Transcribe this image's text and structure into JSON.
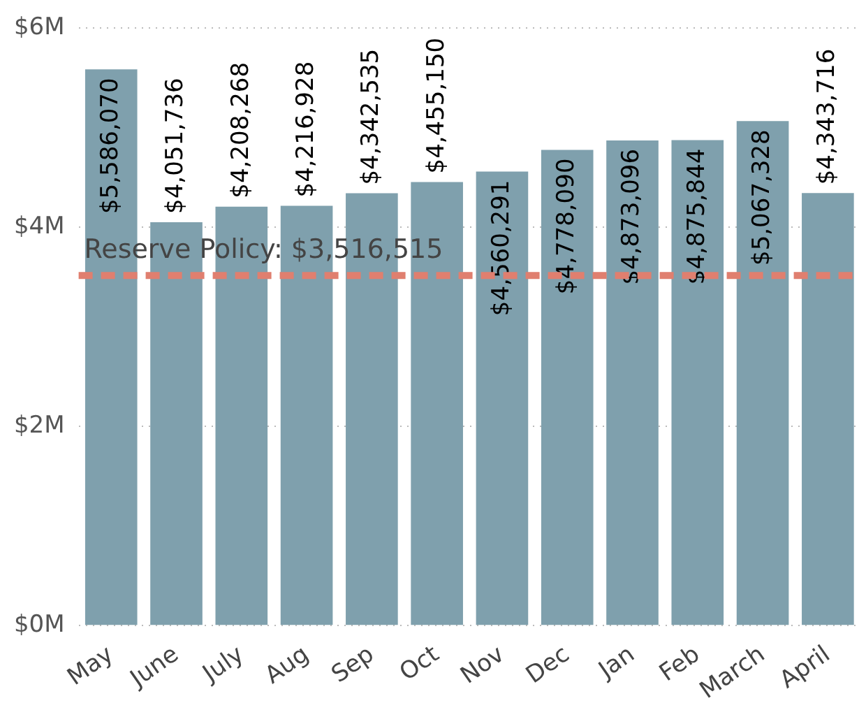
{
  "chart_data": {
    "type": "bar",
    "categories": [
      "May",
      "June",
      "July",
      "Aug",
      "Sep",
      "Oct",
      "Nov",
      "Dec",
      "Jan",
      "Feb",
      "March",
      "April"
    ],
    "values": [
      5586070,
      4051736,
      4208268,
      4216928,
      4342535,
      4455150,
      4560291,
      4778090,
      4873096,
      4875844,
      5067328,
      4343716
    ],
    "value_labels": [
      "$5,586,070",
      "$4,051,736",
      "$4,208,268",
      "$4,216,928",
      "$4,342,535",
      "$4,455,150",
      "$4,560,291",
      "$4,778,090",
      "$4,873,096",
      "$4,875,844",
      "$5,067,328",
      "$4,343,716"
    ],
    "color": "#7fa0ad",
    "ylim": [
      0,
      6000000
    ],
    "yticks": [
      {
        "value": 0,
        "label": "$0M"
      },
      {
        "value": 2000000,
        "label": "$2M"
      },
      {
        "value": 4000000,
        "label": "$4M"
      },
      {
        "value": 6000000,
        "label": "$6M"
      }
    ],
    "grid": "y",
    "legend": false,
    "ref_lines": [
      {
        "axis": "y",
        "value": 3516515,
        "label": "Reserve Policy: $3,516,515",
        "color": "#e07f6f",
        "line_style": "dashed"
      }
    ]
  }
}
